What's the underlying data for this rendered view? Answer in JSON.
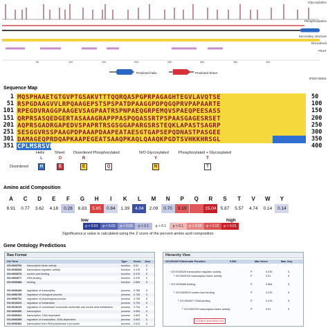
{
  "feature_map": {
    "labels": {
      "glycosylation": "Glycosylation",
      "phosphorylation": "Phosphorylation",
      "secondary_structure": "Secondary structure",
      "disordered": "Disordered",
      "pest": "PEST"
    },
    "axis_ticks": [
      "50",
      "100",
      "150",
      "200",
      "250",
      "300",
      "350",
      "400"
    ],
    "legend": {
      "helix": "Predicted helix",
      "sheet": "Predicted Sheet"
    },
    "protein_id": "IPI00745501",
    "colors": {
      "glyco_tick": "#8c1d2b",
      "phospho": "#d4434f",
      "sec_structure": "#000000",
      "disordered_bar": "#f3d33b",
      "pest_bar": "#c58fc9",
      "helix": "#2b68c4",
      "sheet": "#d5303b"
    }
  },
  "sequence_map": {
    "title": "Sequence Map",
    "rows": [
      {
        "start": "1",
        "end": "50",
        "seq": "MQSPHAAETGTGVPTGSAKVTTTQQRQASPGPRPAGAGHTEGVLAVQTSE"
      },
      {
        "start": "51",
        "end": "100",
        "seq": "RSPGDAAGVVLRPQAAGEPSTSPSPATDPAAGGPDPQGQPRVPAPAARTE"
      },
      {
        "start": "101",
        "end": "150",
        "seq": "RPEGDVRAGGPAAGEVSAGPAATRSPNPAEQGRPEMQVSPAEQPEESASS"
      },
      {
        "start": "151",
        "end": "200",
        "seq": "QRPRSASQEDGERTASAAAGRAPPPASPQQASSRTPSPAASGAGESRSET"
      },
      {
        "start": "201",
        "end": "250",
        "seq": "AQPRSGADRGAPEDVSPAPRTRSGSGGAPARGSRSTEQKLAPASTSAGRP"
      },
      {
        "start": "251",
        "end": "300",
        "seq": "SESGGVRSSPAAGPDPAAAPDAAPEATAESGTGAPSEPQDNASTPASGEE"
      },
      {
        "start": "301",
        "end": "350",
        "seq": "DAMAGEQPRDQAPKAAPEGEATSAAQPKAQLQAAQKPGDTSVHKKHRSGL"
      },
      {
        "start": "351",
        "end": "400",
        "seq": "CPLMSRSVR"
      }
    ],
    "legend": {
      "helix": "Helix",
      "sheet": "Sheet",
      "disordered_phos": "Disordered Phosphorylated",
      "no_glyco": "N/O Glycosylated",
      "phos_glyco": "Phosphorylated + Glycosylated",
      "disordered": "Disordered",
      "helix_box": "H",
      "sheet_box": "E",
      "dis_box": "E",
      "phos_box": "Q",
      "glyco_box": "N",
      "pg_box": "T",
      "helix_dot": "L",
      "sheet_dot": "D",
      "dp_dot": "R",
      "nog_dot": "Y",
      "pg_dot": "T"
    },
    "colors": {
      "disordered_bg": "#f5d83c",
      "helix_bg": "#2f6fd0",
      "residue_text": "#8a1a1a"
    }
  },
  "aa_composition": {
    "title": "Amino acid Composition",
    "residues": [
      {
        "aa": "A",
        "value": "8.91",
        "bg": "#ffffff"
      },
      {
        "aa": "C",
        "value": "0.77",
        "bg": "#ffffff"
      },
      {
        "aa": "D",
        "value": "3.62",
        "bg": "#ffffff"
      },
      {
        "aa": "E",
        "value": "4.18",
        "bg": "#ffffff"
      },
      {
        "aa": "F",
        "value": "0.28",
        "bg": "#c7cce6"
      },
      {
        "aa": "G",
        "value": "6.83",
        "bg": "#ffffff"
      },
      {
        "aa": "H",
        "value": "5.85",
        "bg": "#d9403f"
      },
      {
        "aa": "I",
        "value": "0.84",
        "bg": "#d3d6ea"
      },
      {
        "aa": "K",
        "value": "1.39",
        "bg": "#ffffff"
      },
      {
        "aa": "L",
        "value": "4.04",
        "bg": "#3b4fa3"
      },
      {
        "aa": "M",
        "value": "2.09",
        "bg": "#ffffff"
      },
      {
        "aa": "N",
        "value": "0.70",
        "bg": "#c7cce6"
      },
      {
        "aa": "P",
        "value": "9.19",
        "bg": "#e0595a"
      },
      {
        "aa": "Q",
        "value": "",
        "bg": "#e0595a"
      },
      {
        "aa": "R",
        "value": "15.04",
        "bg": "#c81e28"
      },
      {
        "aa": "S",
        "value": "5.87",
        "bg": "#ffffff"
      },
      {
        "aa": "T",
        "value": "5.57",
        "bg": "#ffffff"
      },
      {
        "aa": "V",
        "value": "4.74",
        "bg": "#ffffff"
      },
      {
        "aa": "W",
        "value": "0.14",
        "bg": "#ffffff"
      },
      {
        "aa": "Y",
        "value": "0.14",
        "bg": "#d3d6ea"
      }
    ],
    "scale": {
      "low": "low",
      "high": "high",
      "cells": [
        {
          "label": "p < 0.01",
          "bg": "#2e3f95"
        },
        {
          "label": "p < 0.02",
          "bg": "#5564b0"
        },
        {
          "label": "p < 0.05",
          "bg": "#8790c8"
        },
        {
          "label": "p < 0.1",
          "bg": "#b9bedf"
        },
        {
          "label": "p > 0.1",
          "bg": "#ffffff"
        },
        {
          "label": "p < 0.1",
          "bg": "#f2b8b8"
        },
        {
          "label": "p < 0.05",
          "bg": "#e68787"
        },
        {
          "label": "p < 0.02",
          "bg": "#db5252"
        },
        {
          "label": "p < 0.01",
          "bg": "#c81e28"
        }
      ]
    },
    "note": "Significance p value is calculated using the Z score of the percent amino acid composition"
  },
  "gene_ontology": {
    "title": "Gene Ontology Predictions",
    "raw_panel": {
      "title": "Raw Format",
      "headers": [
        "GO Term",
        "Type",
        "Score",
        "Jury"
      ],
      "rows": [
        {
          "go": "GO:0003700",
          "desc": "transcription factor activity",
          "type": "function",
          "score": "0.51",
          "jury": "5"
        },
        {
          "go": "GO:0030528",
          "desc": "transcription regulator activity",
          "type": "function",
          "score": "0.476",
          "jury": "5"
        },
        {
          "go": "GO:0003676",
          "desc": "nucleic acid binding",
          "type": "function",
          "score": "0.475",
          "jury": "5"
        },
        {
          "go": "GO:0003677",
          "desc": "DNA binding",
          "type": "function",
          "score": "0.475",
          "jury": "5"
        },
        {
          "go": "GO:0005488",
          "desc": "binding",
          "type": "function",
          "score": "0.584",
          "jury": "5"
        },
        {
          "go": "GO:0045449",
          "desc": "regulation of transcription",
          "type": "process",
          "score": "0.785",
          "jury": "5"
        },
        {
          "go": "GO:0050789",
          "desc": "regulation of biological process",
          "type": "process",
          "score": "0.725",
          "jury": "5"
        },
        {
          "go": "GO:0050791",
          "desc": "regulation of physiological process",
          "type": "process",
          "score": "0.725",
          "jury": "5"
        },
        {
          "go": "GO:0019222",
          "desc": "regulation of metabolism",
          "type": "process",
          "score": "0.734",
          "jury": "5"
        },
        {
          "go": "GO:0019219",
          "desc": "regulation of nucleobase nucleoside nucleotide and nucleic acid metabolism",
          "type": "process",
          "score": "0.744",
          "jury": "5"
        },
        {
          "go": "GO:0006350",
          "desc": "transcription",
          "type": "process",
          "score": "0.693",
          "jury": "5"
        },
        {
          "go": "GO:0006351",
          "desc": "transcription, DNA dependent",
          "type": "process",
          "score": "0.693",
          "jury": "5"
        },
        {
          "go": "GO:0006355",
          "desc": "regulation of transcription, DNA-dependent",
          "type": "process",
          "score": "0.693",
          "jury": "5"
        },
        {
          "go": "GO:0006366",
          "desc": "transcription from RNA polymerase II promoter",
          "type": "process",
          "score": "0.613",
          "jury": "5"
        }
      ]
    },
    "hierarchy_panel": {
      "title": "Hierarchy View",
      "header": {
        "term": "GO:0003674 Molecular Function",
        "score": "0.584",
        "max_score": "Max Score",
        "max_jury": "Max Jury"
      },
      "rows": [
        {
          "text": "GO:0030528 transcription regulator activity",
          "type": "P",
          "score": "0.476",
          "jury": "5"
        },
        {
          "text": "GO:0003700 transcription factor activity",
          "type": "P",
          "score": "0.51",
          "jury": "5"
        },
        {
          "text": "GO 0005488 binding",
          "type": "P",
          "score": "0.584",
          "jury": "5"
        },
        {
          "text": "GO:0003676 nucleic acid binding",
          "type": "P",
          "score": "0.475",
          "jury": "5"
        },
        {
          "text": "GO:0003677 DNA binding",
          "type": "P",
          "score": "0.475",
          "jury": "5"
        },
        {
          "text": "GO:0003700 transcription factor activity",
          "type": "P",
          "score": "0.51",
          "jury": "5"
        }
      ],
      "annotation": "GO term level from root"
    }
  }
}
